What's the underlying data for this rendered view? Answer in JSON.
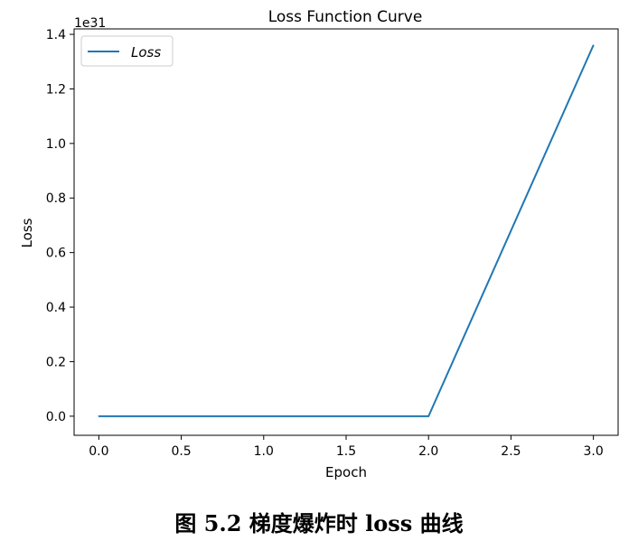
{
  "chart_data": {
    "type": "line",
    "title": "Loss Function Curve",
    "xlabel": "Epoch",
    "ylabel": "Loss",
    "y_offset_label": "1e31",
    "y_scale_factor": 1e+31,
    "xlim": [
      -0.15,
      3.15
    ],
    "ylim": [
      -0.07,
      1.42
    ],
    "x_ticks": [
      0.0,
      0.5,
      1.0,
      1.5,
      2.0,
      2.5,
      3.0
    ],
    "x_tick_labels": [
      "0.0",
      "0.5",
      "1.0",
      "1.5",
      "2.0",
      "2.5",
      "3.0"
    ],
    "y_ticks": [
      0.0,
      0.2,
      0.4,
      0.6,
      0.8,
      1.0,
      1.2,
      1.4
    ],
    "y_tick_labels": [
      "0.0",
      "0.2",
      "0.4",
      "0.6",
      "0.8",
      "1.0",
      "1.2",
      "1.4"
    ],
    "series": [
      {
        "name": "Loss",
        "color": "#1f77b4",
        "x": [
          0,
          1,
          2,
          3
        ],
        "y": [
          0.0,
          0.0,
          0.0,
          1.36
        ]
      }
    ],
    "legend": {
      "position": "top-left"
    },
    "grid": false
  },
  "caption": "图 5.2 梯度爆炸时 loss 曲线"
}
